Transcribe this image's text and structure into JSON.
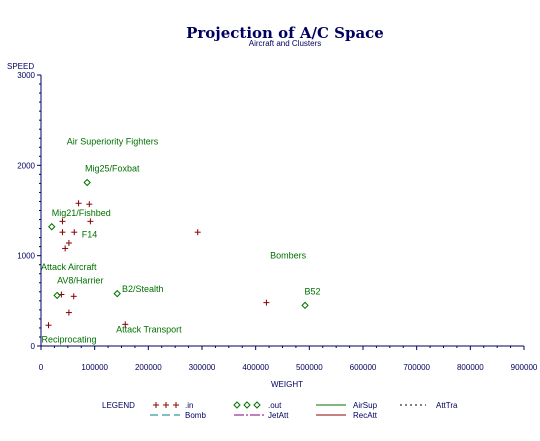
{
  "chart_data": {
    "type": "scatter",
    "title": "Projection of A/C Space",
    "subtitle": "Aircraft and Clusters",
    "xlabel": "WEIGHT",
    "ylabel": "SPEED",
    "xlim": [
      0,
      900000
    ],
    "ylim": [
      0,
      3000
    ],
    "x_ticks": [
      0,
      100000,
      200000,
      300000,
      400000,
      500000,
      600000,
      700000,
      800000,
      900000
    ],
    "x_tick_labels": [
      "0",
      "100000",
      "200000",
      "300000",
      "400000",
      "500000",
      "600000",
      "700000",
      "800000",
      "900000"
    ],
    "y_ticks": [
      0,
      1000,
      2000,
      3000
    ],
    "y_tick_labels": [
      "0",
      "1000",
      "2000",
      "3000"
    ],
    "series": [
      {
        "name": ".in",
        "marker": "+",
        "color": "#8b0000",
        "points": [
          [
            14000,
            230
          ],
          [
            38000,
            570
          ],
          [
            52000,
            370
          ],
          [
            61000,
            550
          ],
          [
            157000,
            240
          ],
          [
            292000,
            1260
          ],
          [
            420000,
            480
          ],
          [
            70000,
            1580
          ],
          [
            90000,
            1570
          ],
          [
            40000,
            1380
          ],
          [
            92000,
            1380
          ],
          [
            40000,
            1260
          ],
          [
            62000,
            1260
          ],
          [
            52000,
            1140
          ],
          [
            45000,
            1080
          ]
        ]
      },
      {
        "name": ".out",
        "marker": "diamond",
        "color": "#007000",
        "points": [
          [
            20000,
            1320
          ],
          [
            86000,
            1810
          ],
          [
            30000,
            560
          ],
          [
            142000,
            580
          ],
          [
            492000,
            450
          ]
        ]
      }
    ],
    "annotations": [
      {
        "text": "Air Superiority Fighters",
        "x": 48000,
        "y": 2230
      },
      {
        "text": "Mig25/Foxbat",
        "x": 82000,
        "y": 1930
      },
      {
        "text": "Mig21/Fishbed",
        "x": 20000,
        "y": 1440
      },
      {
        "text": "F14",
        "x": 76000,
        "y": 1200
      },
      {
        "text": "Attack Aircraft",
        "x": 0,
        "y": 840
      },
      {
        "text": "AV8/Harrier",
        "x": 30000,
        "y": 690
      },
      {
        "text": "B2/Stealth",
        "x": 151000,
        "y": 600
      },
      {
        "text": "Bombers",
        "x": 427000,
        "y": 970
      },
      {
        "text": "B52",
        "x": 491000,
        "y": 570
      },
      {
        "text": "Attack Transport",
        "x": 140000,
        "y": 150
      },
      {
        "text": "Reciprocating",
        "x": 1000,
        "y": 40
      }
    ]
  },
  "legend": {
    "title": "LEGEND",
    "items": [
      {
        "label": ".in",
        "symbol": "plus",
        "color": "#8b0000"
      },
      {
        "label": ".out",
        "symbol": "diamond",
        "color": "#007000"
      },
      {
        "label": "AirSup",
        "symbol": "solid-line",
        "color": "#007000"
      },
      {
        "label": "AttTra",
        "symbol": "dot-line",
        "color": "#000000"
      },
      {
        "label": "Bomb",
        "symbol": "dash-line",
        "color": "#008080"
      },
      {
        "label": "JetAtt",
        "symbol": "dash-dot-line",
        "color": "#800080"
      },
      {
        "label": "RecAtt",
        "symbol": "solid-line",
        "color": "#8b0000"
      }
    ]
  }
}
